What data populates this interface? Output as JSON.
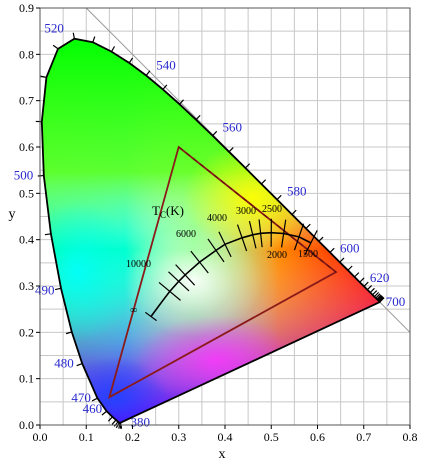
{
  "chart_data": {
    "type": "diagram",
    "xlabel": "x",
    "ylabel": "y",
    "xlim": [
      0,
      0.8
    ],
    "ylim": [
      0,
      0.9
    ],
    "xticks": [
      "0.0",
      "0.1",
      "0.2",
      "0.3",
      "0.4",
      "0.5",
      "0.6",
      "0.7",
      "0.8"
    ],
    "yticks": [
      "0.0",
      "0.1",
      "0.2",
      "0.3",
      "0.4",
      "0.5",
      "0.6",
      "0.7",
      "0.8",
      "0.9"
    ],
    "grid": true,
    "spectral_locus": [
      [
        0.1741,
        0.005
      ],
      [
        0.1738,
        0.0049
      ],
      [
        0.1736,
        0.0049
      ],
      [
        0.1733,
        0.0048
      ],
      [
        0.1726,
        0.0048
      ],
      [
        0.1714,
        0.0051
      ],
      [
        0.1689,
        0.0069
      ],
      [
        0.1644,
        0.0109
      ],
      [
        0.1566,
        0.0177
      ],
      [
        0.144,
        0.0297
      ],
      [
        0.1241,
        0.0578
      ],
      [
        0.0913,
        0.1327
      ],
      [
        0.0687,
        0.2007
      ],
      [
        0.0454,
        0.295
      ],
      [
        0.0235,
        0.4127
      ],
      [
        0.0082,
        0.5384
      ],
      [
        0.0039,
        0.6548
      ],
      [
        0.0139,
        0.7502
      ],
      [
        0.0389,
        0.812
      ],
      [
        0.0743,
        0.8338
      ],
      [
        0.1142,
        0.8262
      ],
      [
        0.1547,
        0.8059
      ],
      [
        0.1929,
        0.7816
      ],
      [
        0.2296,
        0.7543
      ],
      [
        0.2658,
        0.7243
      ],
      [
        0.3016,
        0.6923
      ],
      [
        0.3373,
        0.6589
      ],
      [
        0.3731,
        0.6245
      ],
      [
        0.4087,
        0.5896
      ],
      [
        0.4441,
        0.5547
      ],
      [
        0.4788,
        0.5202
      ],
      [
        0.5125,
        0.4866
      ],
      [
        0.5448,
        0.4544
      ],
      [
        0.5752,
        0.4242
      ],
      [
        0.6029,
        0.3965
      ],
      [
        0.627,
        0.3725
      ],
      [
        0.6482,
        0.3514
      ],
      [
        0.6658,
        0.334
      ],
      [
        0.6801,
        0.3197
      ],
      [
        0.6915,
        0.3083
      ],
      [
        0.7006,
        0.2993
      ],
      [
        0.7079,
        0.292
      ],
      [
        0.714,
        0.2859
      ],
      [
        0.719,
        0.2809
      ],
      [
        0.723,
        0.277
      ],
      [
        0.726,
        0.274
      ],
      [
        0.7283,
        0.2717
      ],
      [
        0.73,
        0.27
      ],
      [
        0.7311,
        0.2689
      ],
      [
        0.732,
        0.268
      ],
      [
        0.7327,
        0.2673
      ],
      [
        0.7334,
        0.2666
      ],
      [
        0.734,
        0.266
      ],
      [
        0.7344,
        0.2656
      ],
      [
        0.7346,
        0.2654
      ],
      [
        0.7347,
        0.2653
      ]
    ],
    "wavelength_labels": [
      {
        "text": "380",
        "x": 0.1741,
        "y": 0.005
      },
      {
        "text": "460",
        "x": 0.144,
        "y": 0.0297
      },
      {
        "text": "470",
        "x": 0.1241,
        "y": 0.0578
      },
      {
        "text": "480",
        "x": 0.0913,
        "y": 0.1327
      },
      {
        "text": "490",
        "x": 0.0454,
        "y": 0.295
      },
      {
        "text": "500",
        "x": 0.0082,
        "y": 0.5384
      },
      {
        "text": "520",
        "x": 0.0743,
        "y": 0.8338
      },
      {
        "text": "540",
        "x": 0.2296,
        "y": 0.7543
      },
      {
        "text": "560",
        "x": 0.3731,
        "y": 0.6245
      },
      {
        "text": "580",
        "x": 0.5125,
        "y": 0.4866
      },
      {
        "text": "600",
        "x": 0.627,
        "y": 0.3725
      },
      {
        "text": "620",
        "x": 0.6915,
        "y": 0.3083
      },
      {
        "text": "700",
        "x": 0.7347,
        "y": 0.2653
      }
    ],
    "gamut_triangle": [
      [
        0.64,
        0.33
      ],
      [
        0.3,
        0.6
      ],
      [
        0.15,
        0.06
      ]
    ],
    "dashed_line": [
      [
        0.3,
        0.6
      ],
      [
        0.64,
        0.33
      ]
    ],
    "planckian_locus": [
      [
        0.2399,
        0.2342
      ],
      [
        0.265,
        0.268
      ],
      [
        0.2806,
        0.2883
      ],
      [
        0.3,
        0.31
      ],
      [
        0.3138,
        0.3239
      ],
      [
        0.345,
        0.3516
      ],
      [
        0.3805,
        0.3768
      ],
      [
        0.4,
        0.39
      ],
      [
        0.4369,
        0.4041
      ],
      [
        0.4599,
        0.4106
      ],
      [
        0.477,
        0.4137
      ],
      [
        0.5,
        0.415
      ],
      [
        0.5268,
        0.4133
      ],
      [
        0.56,
        0.406
      ],
      [
        0.5857,
        0.3931
      ]
    ],
    "temperature_labels": [
      "10000",
      "6000",
      "4000",
      "3000",
      "2500",
      "2000",
      "1500",
      "∞"
    ],
    "tc_label_main": "T",
    "tc_label_sub": "C",
    "tc_label_unit": "(K)"
  }
}
